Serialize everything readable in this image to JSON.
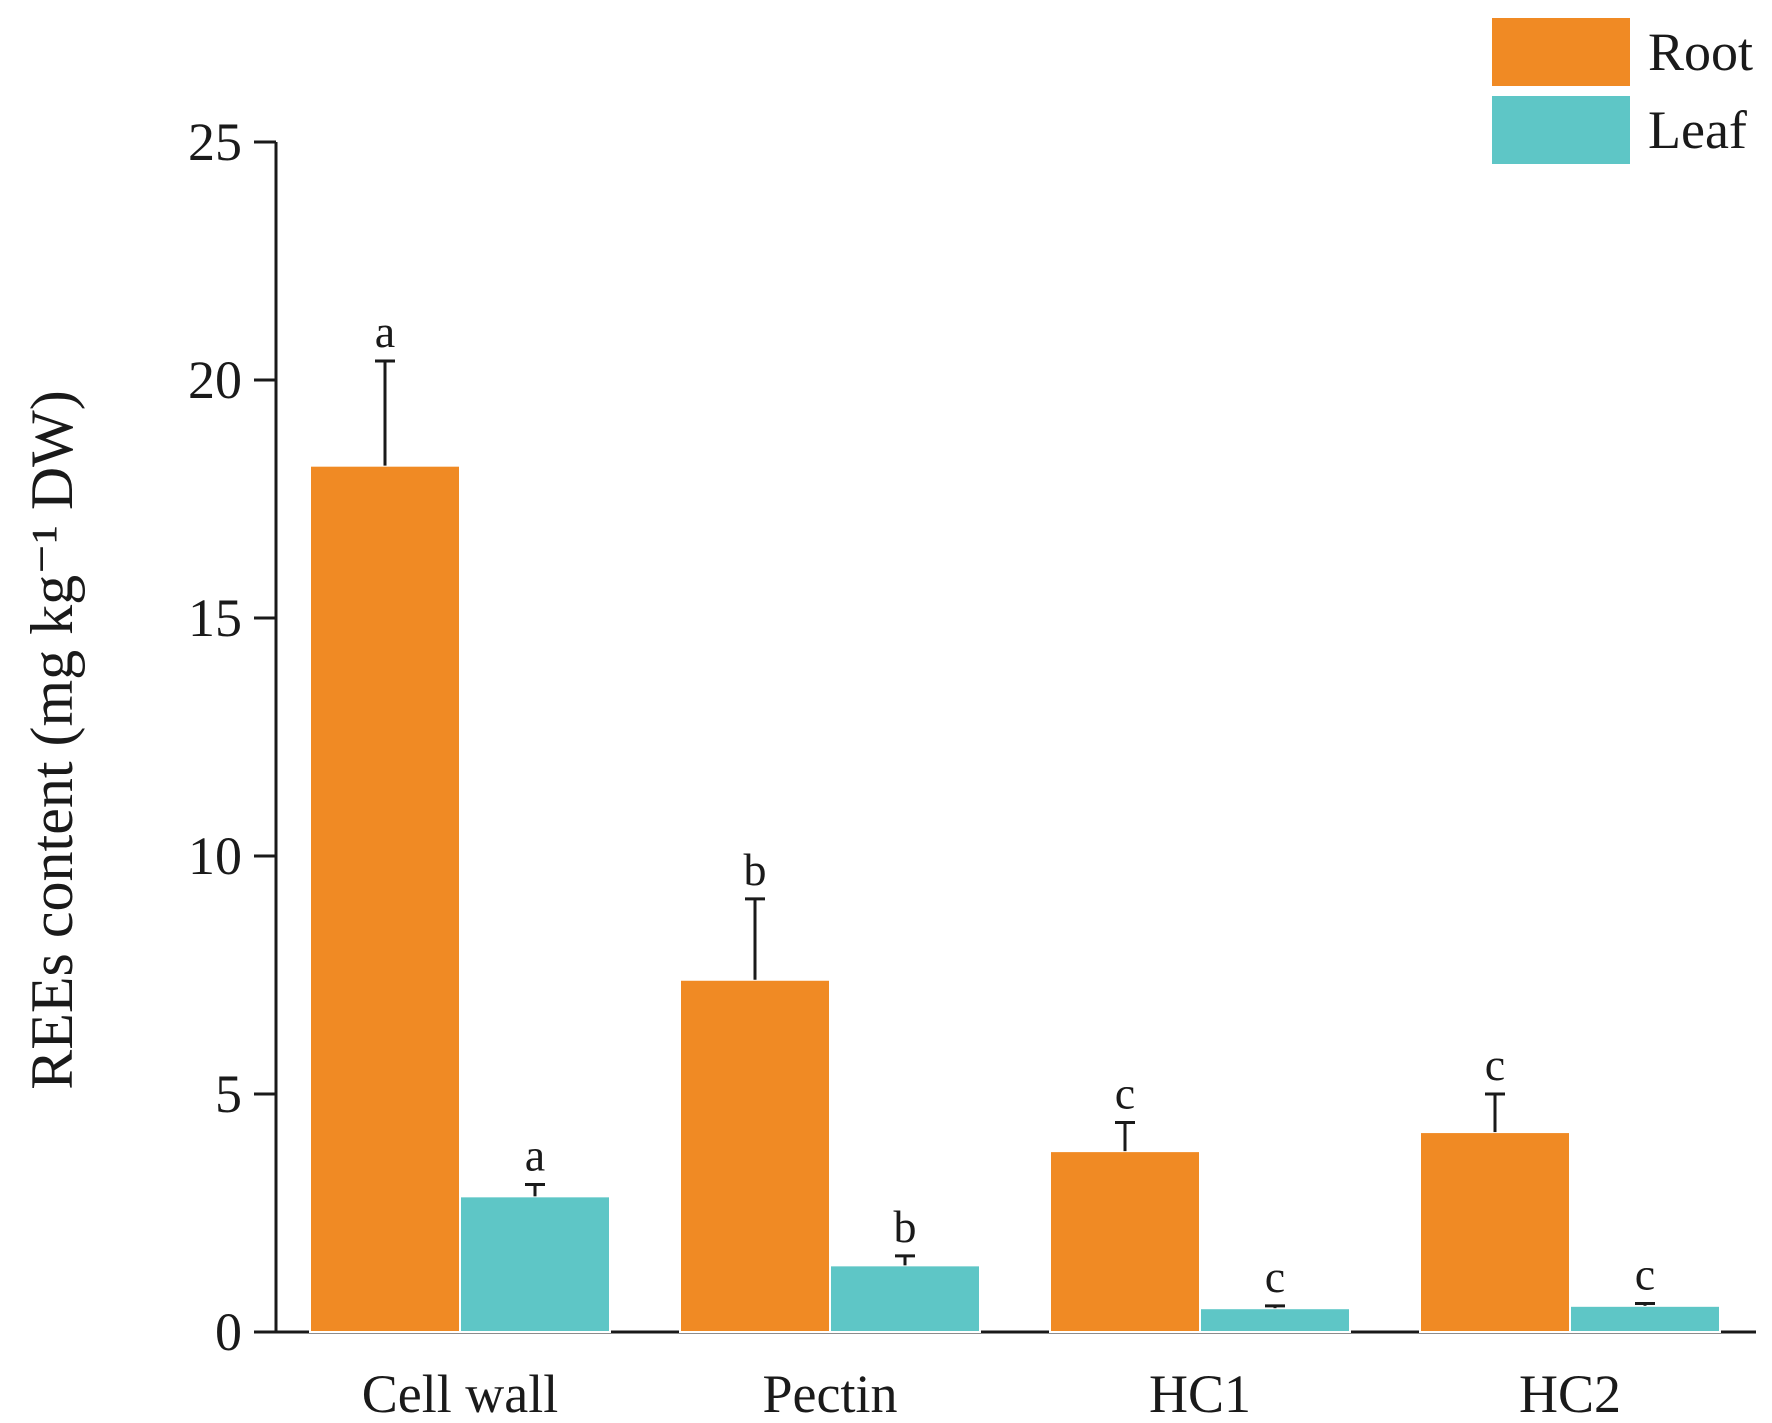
{
  "chart_data": {
    "type": "bar",
    "title": "",
    "xlabel": "",
    "ylabel": "REEs content (mg kg⁻¹ DW)",
    "ylim": [
      0,
      25
    ],
    "yticks": [
      0,
      5,
      10,
      15,
      20,
      25
    ],
    "grid": false,
    "legend_position": "top-right",
    "categories": [
      "Cell wall",
      "Pectin",
      "HC1",
      "HC2"
    ],
    "series": [
      {
        "name": "Root",
        "color": "#F08A24",
        "values": [
          18.2,
          7.4,
          3.8,
          4.2
        ],
        "errors": [
          2.2,
          1.7,
          0.6,
          0.8
        ],
        "significance": [
          "a",
          "b",
          "c",
          "c"
        ]
      },
      {
        "name": "Leaf",
        "color": "#5EC6C6",
        "values": [
          2.85,
          1.4,
          0.5,
          0.55
        ],
        "errors": [
          0.25,
          0.2,
          0.05,
          0.05
        ],
        "significance": [
          "a",
          "b",
          "c",
          "c"
        ]
      }
    ]
  }
}
